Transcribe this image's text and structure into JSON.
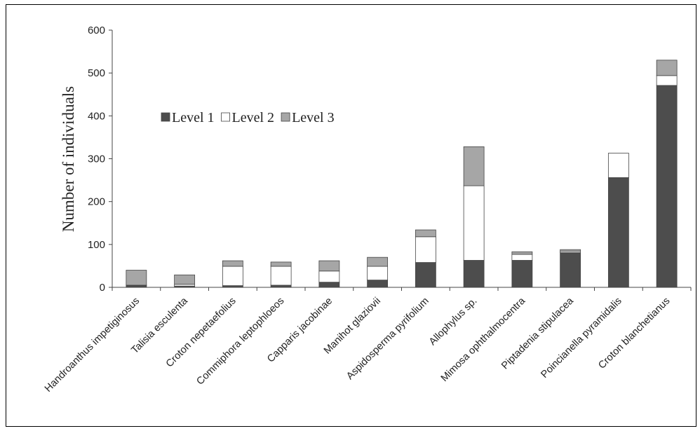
{
  "chart_data": {
    "type": "bar",
    "stacked": true,
    "title": "",
    "xlabel": "",
    "ylabel": "Number of individuals",
    "ylim": [
      0,
      600
    ],
    "yticks": [
      0,
      100,
      200,
      300,
      400,
      500,
      600
    ],
    "grid": false,
    "legend": "top-left, inside plot, horizontal",
    "categories": [
      "Handroanthus impetiginosus",
      "Talisia esculenta",
      "Croton nepetaefolius",
      "Commiphora leptophloeos",
      "Capparis jacobinae",
      "Manihot glaziovii",
      "Aspidosperma pyrifolium",
      "Allophylus sp.",
      "Mimosa ophthalmocentra",
      "Piptadenia stipulacea",
      "Poincianella pyramidalis",
      "Croton blanchetianus"
    ],
    "series": [
      {
        "name": "Level 1",
        "color": "#4d4d4d",
        "values": [
          4,
          3,
          4,
          5,
          12,
          17,
          58,
          63,
          63,
          81,
          256,
          471
        ]
      },
      {
        "name": "Level 2",
        "color": "#ffffff",
        "values": [
          1,
          4,
          45,
          44,
          26,
          32,
          60,
          174,
          14,
          3,
          57,
          23
        ]
      },
      {
        "name": "Level 3",
        "color": "#a6a6a6",
        "values": [
          35,
          22,
          13,
          10,
          24,
          21,
          16,
          91,
          6,
          4,
          0,
          36
        ]
      }
    ]
  }
}
